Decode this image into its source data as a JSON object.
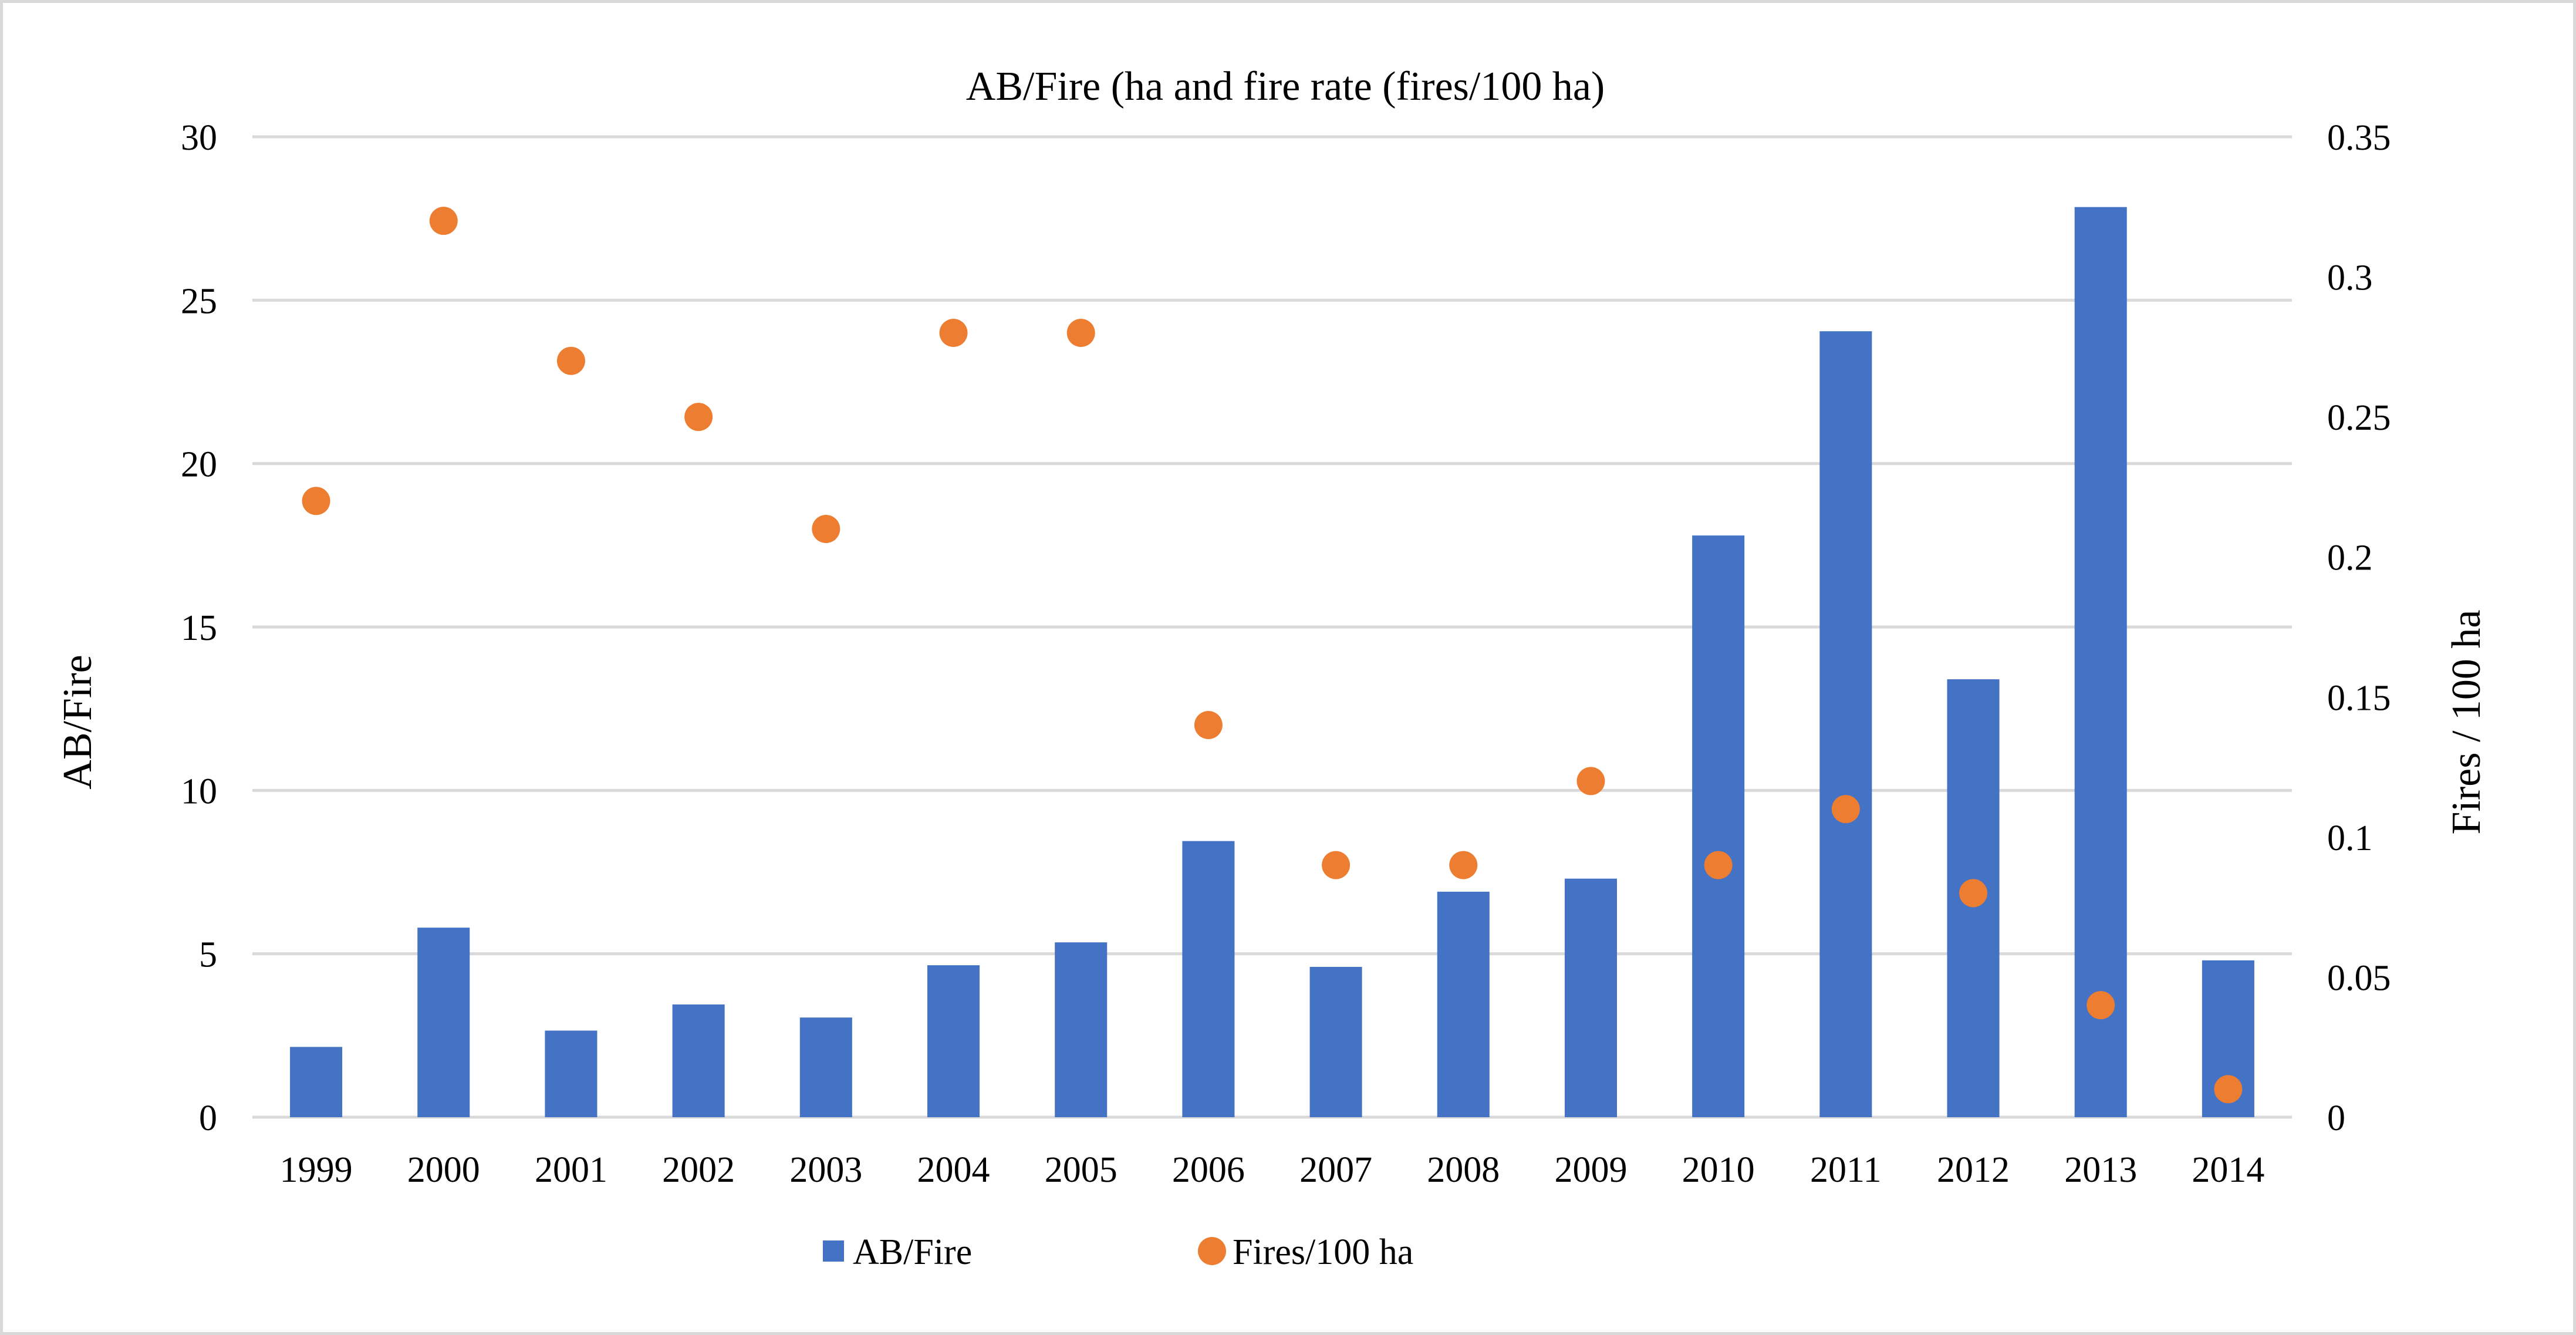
{
  "chart_data": {
    "type": "bar",
    "title": "AB/Fire (ha and fire rate (fires/100 ha)",
    "ylabel": "AB/Fire",
    "y2label": "Fires / 100 ha",
    "categories": [
      "1999",
      "2000",
      "2001",
      "2002",
      "2003",
      "2004",
      "2005",
      "2006",
      "2007",
      "2008",
      "2009",
      "2010",
      "2011",
      "2012",
      "2013",
      "2014"
    ],
    "ylim": [
      0,
      30
    ],
    "yticks": [
      "0",
      "5",
      "10",
      "15",
      "20",
      "25",
      "30"
    ],
    "y2lim": [
      0,
      0.35
    ],
    "y2ticks": [
      "0",
      "0.05",
      "0.1",
      "0.15",
      "0.2",
      "0.25",
      "0.3",
      "0.35"
    ],
    "grid": true,
    "legend_position": "bottom",
    "series": [
      {
        "name": "AB/Fire",
        "type": "bar",
        "axis": "left",
        "color": "#4472c4",
        "values": [
          2.15,
          5.8,
          2.65,
          3.45,
          3.05,
          4.65,
          5.35,
          8.45,
          4.6,
          6.9,
          7.3,
          17.8,
          24.05,
          13.4,
          27.85,
          4.8
        ]
      },
      {
        "name": "Fires/100 ha",
        "type": "scatter",
        "axis": "right",
        "color": "#ed7d31",
        "values": [
          0.22,
          0.32,
          0.27,
          0.25,
          0.21,
          0.28,
          0.28,
          0.14,
          0.09,
          0.09,
          0.12,
          0.09,
          0.11,
          0.08,
          0.04,
          0.01
        ]
      }
    ]
  }
}
